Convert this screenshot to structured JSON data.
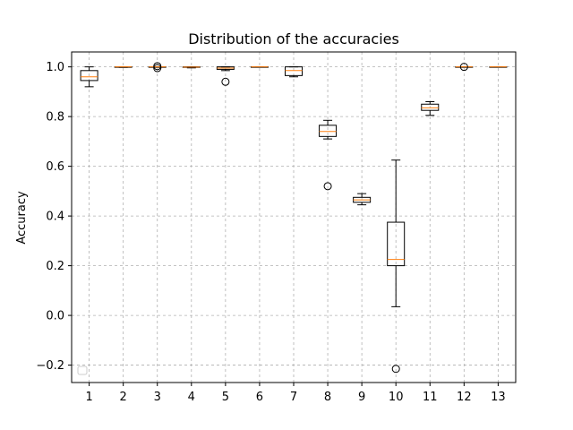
{
  "chart_data": {
    "type": "boxplot",
    "title": "Distribution of the accuracies",
    "xlabel": "",
    "ylabel": "Accuracy",
    "ylim": [
      -0.27,
      1.06
    ],
    "yticks": [
      -0.2,
      0.0,
      0.2,
      0.4,
      0.6,
      0.8,
      1.0
    ],
    "ytick_labels": [
      "−0.2",
      "0.0",
      "0.2",
      "0.4",
      "0.6",
      "0.8",
      "1.0"
    ],
    "grid": true,
    "legend": "bottom-left (empty)",
    "colors": {
      "box": "#000000",
      "median": "#ff7f0e",
      "grid": "#b0b0b0"
    },
    "categories": [
      "1",
      "2",
      "3",
      "4",
      "5",
      "6",
      "7",
      "8",
      "9",
      "10",
      "11",
      "12",
      "13"
    ],
    "boxes": [
      {
        "label": "1",
        "whislo": 0.92,
        "q1": 0.945,
        "med": 0.96,
        "q3": 0.985,
        "whishi": 1.0,
        "fliers": []
      },
      {
        "label": "2",
        "whislo": 0.998,
        "q1": 0.999,
        "med": 1.0,
        "q3": 1.0,
        "whishi": 1.0,
        "fliers": []
      },
      {
        "label": "3",
        "whislo": 1.0,
        "q1": 1.0,
        "med": 1.0,
        "q3": 1.0,
        "whishi": 1.0,
        "fliers": [
          0.995,
          1.003
        ]
      },
      {
        "label": "4",
        "whislo": 0.996,
        "q1": 0.998,
        "med": 0.999,
        "q3": 1.0,
        "whishi": 1.0,
        "fliers": []
      },
      {
        "label": "5",
        "whislo": 0.985,
        "q1": 0.99,
        "med": 0.995,
        "q3": 1.0,
        "whishi": 1.0,
        "fliers": [
          0.94
        ]
      },
      {
        "label": "6",
        "whislo": 0.999,
        "q1": 1.0,
        "med": 1.0,
        "q3": 1.0,
        "whishi": 1.0,
        "fliers": []
      },
      {
        "label": "7",
        "whislo": 0.96,
        "q1": 0.965,
        "med": 0.985,
        "q3": 1.0,
        "whishi": 1.0,
        "fliers": []
      },
      {
        "label": "8",
        "whislo": 0.71,
        "q1": 0.72,
        "med": 0.74,
        "q3": 0.765,
        "whishi": 0.785,
        "fliers": [
          0.52
        ]
      },
      {
        "label": "9",
        "whislo": 0.445,
        "q1": 0.455,
        "med": 0.465,
        "q3": 0.475,
        "whishi": 0.49,
        "fliers": []
      },
      {
        "label": "10",
        "whislo": 0.035,
        "q1": 0.2,
        "med": 0.225,
        "q3": 0.375,
        "whishi": 0.625,
        "fliers": [
          -0.215
        ]
      },
      {
        "label": "11",
        "whislo": 0.805,
        "q1": 0.825,
        "med": 0.835,
        "q3": 0.85,
        "whishi": 0.86,
        "fliers": []
      },
      {
        "label": "12",
        "whislo": 1.0,
        "q1": 1.0,
        "med": 1.0,
        "q3": 1.0,
        "whishi": 1.0,
        "fliers": [
          1.0
        ]
      },
      {
        "label": "13",
        "whislo": 0.999,
        "q1": 1.0,
        "med": 1.0,
        "q3": 1.0,
        "whishi": 1.0,
        "fliers": []
      }
    ]
  }
}
